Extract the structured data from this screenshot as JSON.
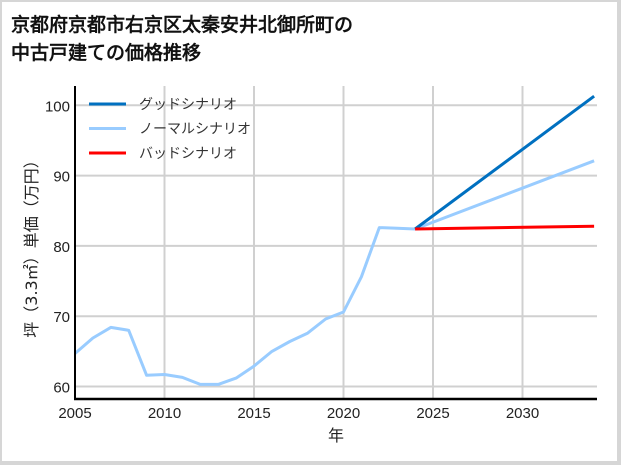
{
  "title": {
    "line1": "京都府京都市右京区太秦安井北御所町の",
    "line2": "中古戸建ての価格推移"
  },
  "chart_data": {
    "type": "line",
    "title": "京都府京都市右京区太秦安井北御所町の中古戸建ての価格推移",
    "xlabel": "年",
    "ylabel": "坪（3.3㎡）単価（万円）",
    "xlim": [
      2005,
      2034
    ],
    "ylim": [
      58.5,
      103.5
    ],
    "xticks": [
      2005,
      2010,
      2015,
      2020,
      2025,
      2030
    ],
    "yticks": [
      60,
      70,
      80,
      90,
      100
    ],
    "grid": true,
    "legend_position": "upper left",
    "series": [
      {
        "name": "グッドシナリオ",
        "color": "#0070c0",
        "x": [
          2024,
          2034
        ],
        "values": [
          82.4,
          101.3
        ]
      },
      {
        "name": "ノーマルシナリオ",
        "color": "#99ccff",
        "x": [
          2005,
          2006,
          2007,
          2008,
          2009,
          2010,
          2011,
          2012,
          2013,
          2014,
          2015,
          2016,
          2017,
          2018,
          2019,
          2020,
          2021,
          2022,
          2023,
          2024,
          2034
        ],
        "values": [
          64.7,
          66.9,
          68.4,
          68.0,
          61.6,
          61.7,
          61.3,
          60.3,
          60.3,
          61.2,
          62.9,
          65.0,
          66.4,
          67.6,
          69.6,
          70.6,
          75.6,
          82.6,
          82.5,
          82.4,
          92.1
        ]
      },
      {
        "name": "バッドシナリオ",
        "color": "#ff0000",
        "x": [
          2024,
          2034
        ],
        "values": [
          82.4,
          82.8
        ]
      }
    ]
  },
  "axis": {
    "x_ticks": [
      "2005",
      "2010",
      "2015",
      "2020",
      "2025",
      "2030"
    ],
    "y_ticks": [
      "100",
      "90",
      "80",
      "70",
      "60"
    ],
    "xlabel": "年",
    "ylabel": "坪（3.3㎡）単価（万円）"
  },
  "legend": [
    {
      "label": "グッドシナリオ",
      "color": "#0070c0"
    },
    {
      "label": "ノーマルシナリオ",
      "color": "#99ccff"
    },
    {
      "label": "バッドシナリオ",
      "color": "#ff0000"
    }
  ]
}
